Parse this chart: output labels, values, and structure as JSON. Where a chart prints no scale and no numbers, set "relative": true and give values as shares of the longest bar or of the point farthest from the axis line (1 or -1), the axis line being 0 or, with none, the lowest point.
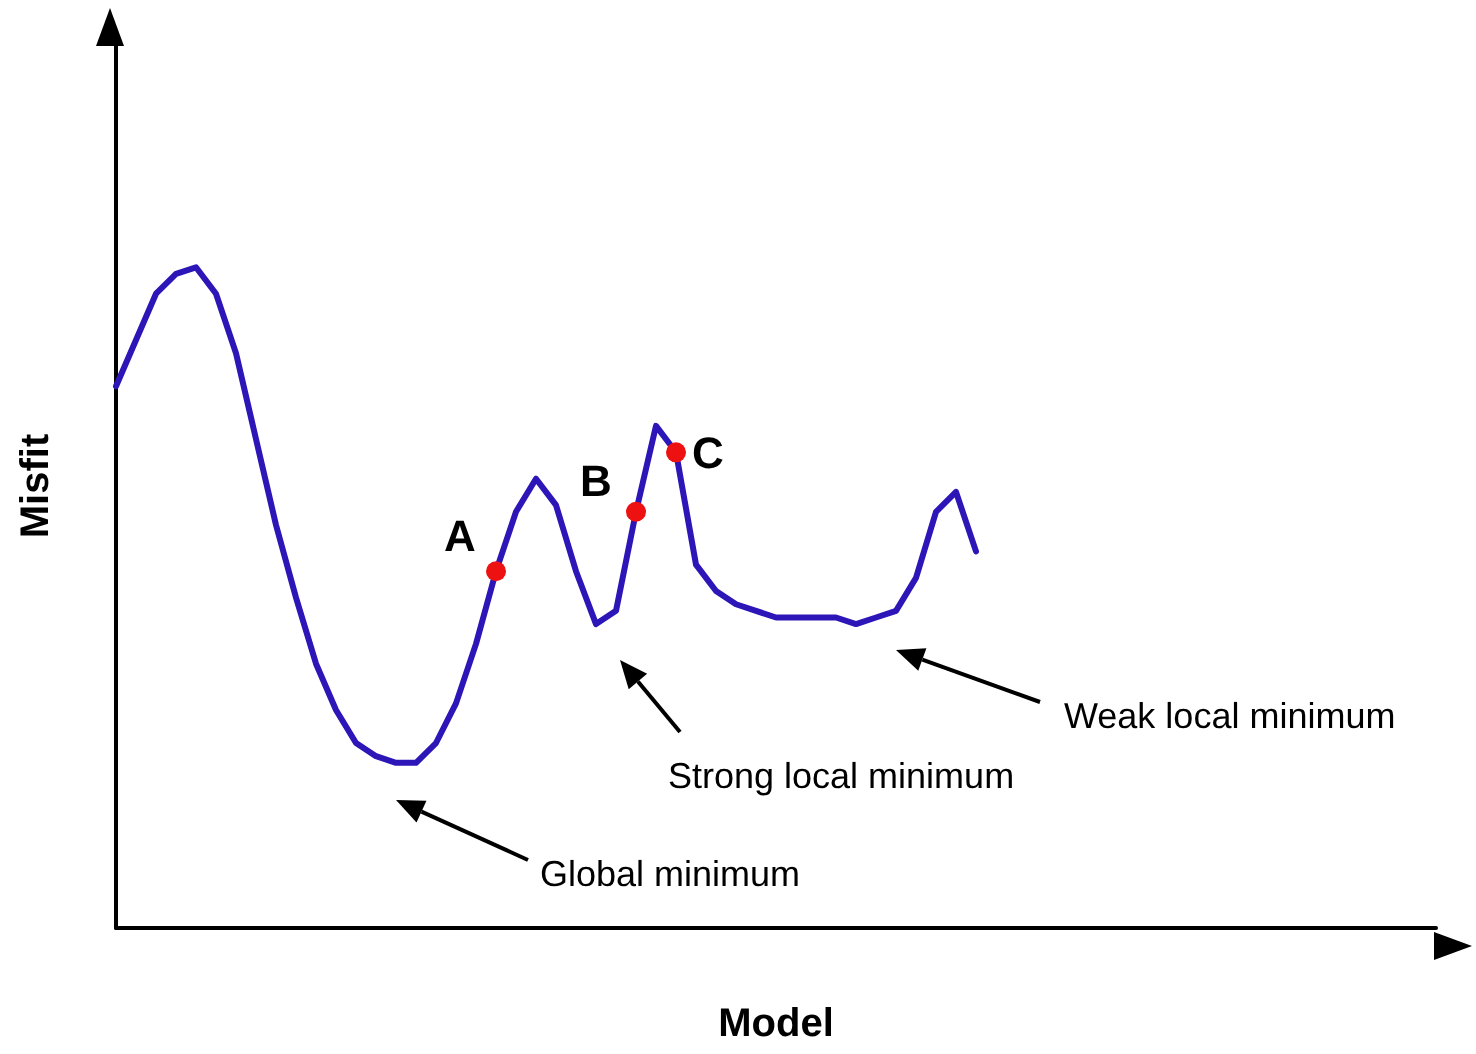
{
  "chart_data": {
    "type": "line",
    "relative": true,
    "xlabel": "Model",
    "ylabel": "Misfit",
    "grid": false,
    "marker": "none",
    "line_style": "solid",
    "categories": [
      null,
      null,
      null,
      null,
      null,
      null,
      null,
      null,
      null,
      null,
      null,
      null,
      null,
      null,
      null,
      null,
      null,
      null,
      null,
      null,
      null,
      null,
      null,
      null,
      null,
      null,
      null,
      null,
      null,
      null,
      null,
      null,
      null,
      null,
      null,
      null,
      null,
      null,
      null,
      null,
      null,
      null,
      null,
      null,
      null,
      null,
      null,
      null,
      null,
      null,
      null,
      null,
      null,
      null,
      null,
      null,
      null,
      null,
      null,
      null,
      null,
      null,
      null,
      null,
      null,
      null,
      null
    ],
    "series": [
      {
        "color": "#2c16b8",
        "values": [
          0.82,
          0.89,
          0.96,
          0.99,
          1.0,
          0.96,
          0.87,
          0.74,
          0.61,
          0.5,
          0.4,
          0.33,
          0.28,
          0.26,
          0.25,
          0.25,
          0.28,
          0.34,
          0.43,
          0.54,
          0.63,
          0.68,
          0.64,
          0.54,
          0.46,
          0.48,
          0.63,
          0.76,
          0.72,
          0.55,
          0.51,
          0.49,
          0.48,
          0.47,
          0.47,
          0.47,
          0.47,
          0.46,
          0.47,
          0.48,
          0.53,
          0.63,
          0.66,
          0.57,
          null,
          null,
          null,
          null,
          null,
          null,
          null,
          null,
          null,
          null,
          null,
          null,
          null,
          null,
          null,
          null,
          null,
          null,
          null,
          null,
          null,
          null,
          null
        ]
      }
    ],
    "annotations": [
      "A",
      "B",
      "C",
      "Global minimum",
      "Strong local minimum",
      "Weak local minimum"
    ]
  }
}
